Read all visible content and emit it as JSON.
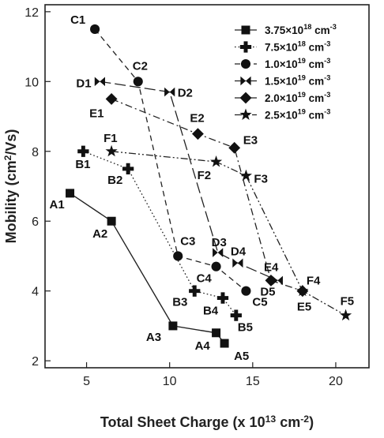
{
  "chart_data": {
    "type": "line",
    "xlabel": "Total Sheet Charge (x 10<sup>13</sup> cm<sup>-2</sup>)",
    "ylabel": "Mobility (cm<sup>2</sup>/Vs)",
    "xlim": [
      2.5,
      22
    ],
    "ylim": [
      1.8,
      12.2
    ],
    "xticks": [
      "5",
      "10",
      "15",
      "20"
    ],
    "yticks": [
      "2",
      "4",
      "6",
      "8",
      "10",
      "12"
    ],
    "grid": false,
    "legend_position": "top-right",
    "series": [
      {
        "name": "3.75×10<sup>18</sup> cm<sup>-3</sup>",
        "marker": "square",
        "line": "solid",
        "points": [
          {
            "label": "A1",
            "x": 4.0,
            "y": 6.8
          },
          {
            "label": "A2",
            "x": 6.5,
            "y": 6.0
          },
          {
            "label": "A3",
            "x": 10.2,
            "y": 3.0
          },
          {
            "label": "A4",
            "x": 12.8,
            "y": 2.8
          },
          {
            "label": "A5",
            "x": 13.3,
            "y": 2.5
          }
        ]
      },
      {
        "name": "7.5×10<sup>18</sup> cm<sup>-3</sup>",
        "marker": "plus",
        "line": "dotted",
        "points": [
          {
            "label": "B1",
            "x": 4.8,
            "y": 8.0
          },
          {
            "label": "B2",
            "x": 7.5,
            "y": 7.5
          },
          {
            "label": "B3",
            "x": 11.5,
            "y": 4.0
          },
          {
            "label": "B4",
            "x": 13.2,
            "y": 3.8
          },
          {
            "label": "B5",
            "x": 14.0,
            "y": 3.3
          }
        ]
      },
      {
        "name": "1.0×10<sup>19</sup> cm<sup>-3</sup>",
        "marker": "circle",
        "line": "dashed",
        "points": [
          {
            "label": "C1",
            "x": 5.5,
            "y": 11.5
          },
          {
            "label": "C2",
            "x": 8.1,
            "y": 10.0
          },
          {
            "label": "C3",
            "x": 10.5,
            "y": 5.0
          },
          {
            "label": "C4",
            "x": 12.8,
            "y": 4.7
          },
          {
            "label": "C5",
            "x": 14.6,
            "y": 4.0
          }
        ]
      },
      {
        "name": "1.5×10<sup>19</sup> cm<sup>-3</sup>",
        "marker": "bowtie",
        "line": "longdash",
        "points": [
          {
            "label": "D1",
            "x": 5.8,
            "y": 10.0
          },
          {
            "label": "D2",
            "x": 10.0,
            "y": 9.7
          },
          {
            "label": "D3",
            "x": 12.9,
            "y": 5.1
          },
          {
            "label": "D4",
            "x": 14.1,
            "y": 4.8
          },
          {
            "label": "D5",
            "x": 16.5,
            "y": 4.3
          }
        ]
      },
      {
        "name": "2.0×10<sup>19</sup> cm<sup>-3</sup>",
        "marker": "diamond",
        "line": "dashdot",
        "points": [
          {
            "label": "E1",
            "x": 6.5,
            "y": 9.5
          },
          {
            "label": "E2",
            "x": 11.7,
            "y": 8.5
          },
          {
            "label": "E3",
            "x": 13.9,
            "y": 8.1
          },
          {
            "label": "E4",
            "x": 16.1,
            "y": 4.3
          },
          {
            "label": "E5",
            "x": 18.0,
            "y": 4.0
          }
        ]
      },
      {
        "name": "2.5×10<sup>19</sup> cm<sup>-3</sup>",
        "marker": "star",
        "line": "dashdotdot",
        "points": [
          {
            "label": "F1",
            "x": 6.5,
            "y": 8.0
          },
          {
            "label": "F2",
            "x": 12.8,
            "y": 7.7
          },
          {
            "label": "F3",
            "x": 14.6,
            "y": 7.3
          },
          {
            "label": "F4",
            "x": 18.0,
            "y": 4.0
          },
          {
            "label": "F5",
            "x": 20.6,
            "y": 3.3
          }
        ]
      }
    ]
  }
}
